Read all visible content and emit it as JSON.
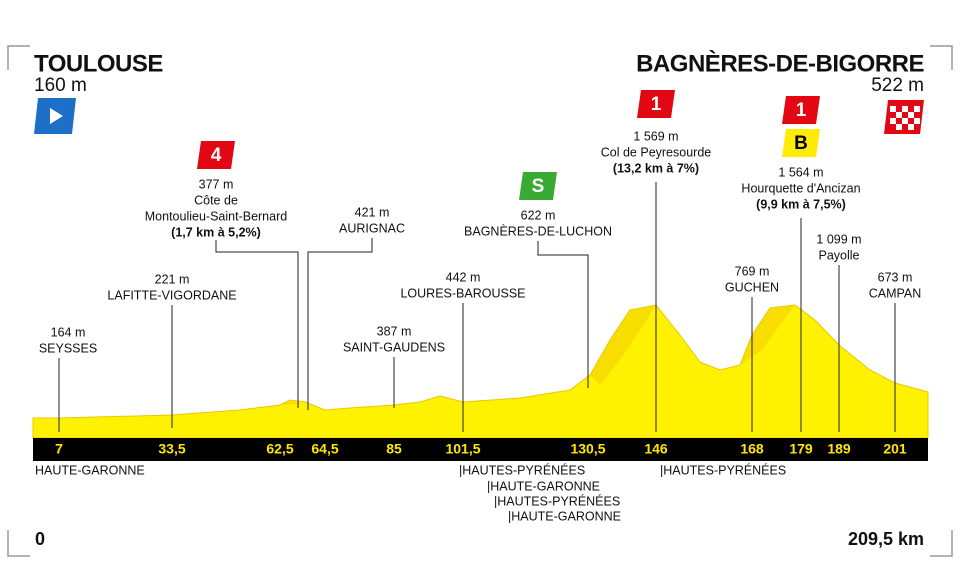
{
  "start": {
    "name": "TOULOUSE",
    "altitude": "160 m"
  },
  "finish": {
    "name": "BAGNÈRES-DE-BIGORRE",
    "altitude": "522 m"
  },
  "waypoints": [
    {
      "km": "7",
      "altitude": "164 m",
      "lines": [
        "SEYSSES"
      ]
    },
    {
      "km": "33,5",
      "altitude": "221 m",
      "lines": [
        "LAFITTE-VIGORDANE"
      ]
    },
    {
      "km": "62,5",
      "badges": [
        "4"
      ],
      "altitude": "377 m",
      "lines": [
        "Côte de",
        "Montoulieu-Saint-Bernard"
      ],
      "detail": "(1,7 km à 5,2%)"
    },
    {
      "km": "64,5",
      "altitude": "421 m",
      "lines": [
        "AURIGNAC"
      ]
    },
    {
      "km": "85",
      "altitude": "387 m",
      "lines": [
        "SAINT-GAUDENS"
      ]
    },
    {
      "km": "101,5",
      "altitude": "442 m",
      "lines": [
        "LOURES-BAROUSSE"
      ]
    },
    {
      "km": "130,5",
      "badges": [
        "S"
      ],
      "altitude": "622 m",
      "lines": [
        "BAGNÈRES-DE-LUCHON"
      ]
    },
    {
      "km": "146",
      "badges": [
        "1"
      ],
      "altitude": "1 569 m",
      "lines": [
        "Col de Peyresourde"
      ],
      "detail": "(13,2 km à 7%)"
    },
    {
      "km": "168",
      "altitude": "769 m",
      "lines": [
        "GUCHEN"
      ]
    },
    {
      "km": "179",
      "badges": [
        "1",
        "B"
      ],
      "altitude": "1 564 m",
      "lines": [
        "Hourquette d'Ancizan"
      ],
      "detail": "(9,9 km à 7,5%)"
    },
    {
      "km": "189",
      "altitude": "1 099 m",
      "lines": [
        "Payolle"
      ]
    },
    {
      "km": "201",
      "altitude": "673 m",
      "lines": [
        "CAMPAN"
      ]
    }
  ],
  "departments": [
    "HAUTE-GARONNE",
    "|HAUTES-PYRÉNÉES",
    "|HAUTE-GARONNE",
    "|HAUTES-PYRÉNÉES",
    "|HAUTE-GARONNE",
    "|HAUTES-PYRÉNÉES"
  ],
  "axis": {
    "start": "0",
    "end": "209,5 km"
  }
}
